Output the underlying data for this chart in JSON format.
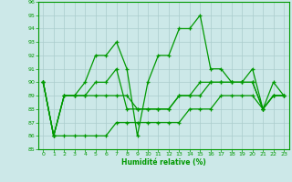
{
  "xlabel": "Humidité relative (%)",
  "background_color": "#cce8e8",
  "grid_color": "#aacccc",
  "line_color": "#009900",
  "xlim": [
    -0.5,
    23.5
  ],
  "ylim": [
    85,
    96
  ],
  "yticks": [
    85,
    86,
    87,
    88,
    89,
    90,
    91,
    92,
    93,
    94,
    95,
    96
  ],
  "xticks": [
    0,
    1,
    2,
    3,
    4,
    5,
    6,
    7,
    8,
    9,
    10,
    11,
    12,
    13,
    14,
    15,
    16,
    17,
    18,
    19,
    20,
    21,
    22,
    23
  ],
  "series": [
    [
      90,
      86,
      89,
      89,
      90,
      92,
      92,
      93,
      91,
      86,
      90,
      92,
      92,
      94,
      94,
      95,
      91,
      91,
      90,
      90,
      91,
      88,
      90,
      89
    ],
    [
      90,
      86,
      89,
      89,
      89,
      90,
      90,
      91,
      88,
      88,
      88,
      88,
      88,
      89,
      89,
      90,
      90,
      90,
      90,
      90,
      90,
      88,
      89,
      89
    ],
    [
      90,
      86,
      89,
      89,
      89,
      89,
      89,
      89,
      89,
      88,
      88,
      88,
      88,
      89,
      89,
      89,
      90,
      90,
      90,
      90,
      90,
      88,
      89,
      89
    ],
    [
      90,
      86,
      86,
      86,
      86,
      86,
      86,
      87,
      87,
      87,
      87,
      87,
      87,
      87,
      88,
      88,
      88,
      89,
      89,
      89,
      89,
      88,
      89,
      89
    ]
  ]
}
